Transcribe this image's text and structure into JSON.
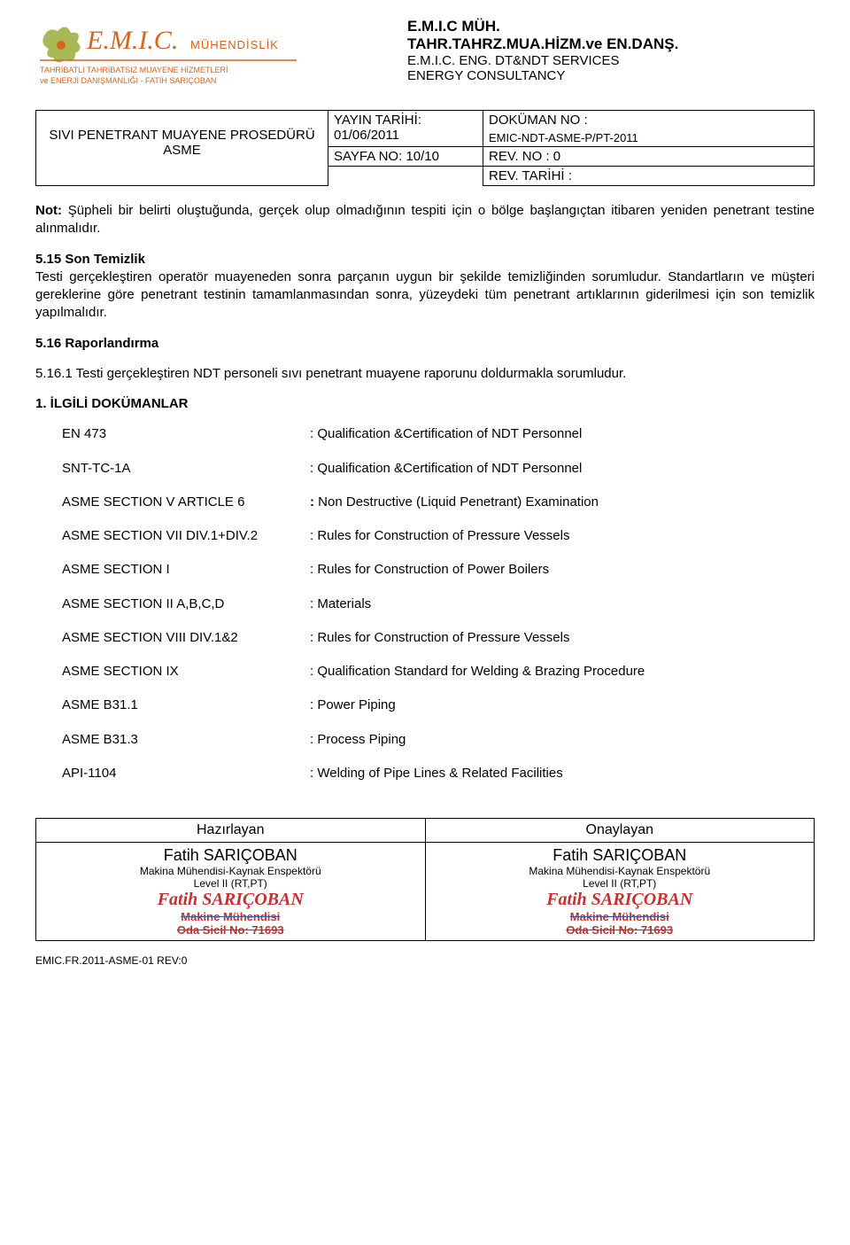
{
  "company": {
    "title1": "E.M.I.C MÜH.",
    "title2": "TAHR.TAHRZ.MUA.HİZM.ve EN.DANŞ.",
    "sub1": "E.M.I.C. ENG. DT&NDT SERVICES",
    "sub2": "ENERGY CONSULTANCY"
  },
  "logo": {
    "brand_main": "E.M.I.C.",
    "brand_sub": "MÜHENDİSLİK",
    "tag1": "TAHRİBATLI TAHRİBATSIZ MUAYENE HİZMETLERİ",
    "tag2": "ve ENERJİ DANIŞMANLIĞI - FATİH SARIÇOBAN",
    "primary_color": "#d8651c",
    "accent_color": "#9aad3a"
  },
  "info": {
    "proc_title": "SIVI PENETRANT MUAYENE PROSEDÜRÜ",
    "proc_sub": "ASME",
    "yayin_label": "YAYIN TARİHİ:",
    "yayin_val": "01/06/2011",
    "sayfa": "SAYFA NO: 10/10",
    "dokuman_label": "DOKÜMAN NO :",
    "dokuman_val": "EMIC-NDT-ASME-P/PT-2011",
    "rev_no": "REV. NO       : 0",
    "rev_tarih": "REV. TARİHİ  :"
  },
  "body": {
    "note_bold": "Not:",
    "note_text": " Şüpheli bir belirti oluştuğunda, gerçek olup olmadığının tespiti için o bölge başlangıçtan itibaren yeniden penetrant testine alınmalıdır.",
    "h515": "5.15 Son Temizlik",
    "p515": "Testi gerçekleştiren operatör muayeneden sonra parçanın uygun bir şekilde temizliğinden sorumludur. Standartların ve müşteri gereklerine göre penetrant testinin tamamlanmasından sonra, yüzeydeki tüm penetrant artıklarının giderilmesi için son temizlik yapılmalıdır.",
    "h516": "5.16 Raporlandırma",
    "p5161": "5.16.1 Testi gerçekleştiren NDT personeli sıvı penetrant muayene raporunu doldurmakla sorumludur.",
    "h1": "1.  İLGİLİ DOKÜMANLAR"
  },
  "docs": [
    {
      "code": "EN 473",
      "desc": ":  Qualification &Certification of NDT Personnel"
    },
    {
      "code": "SNT-TC-1A",
      "desc": ":  Qualification &Certification of NDT Personnel"
    },
    {
      "code": "ASME SECTION V ARTICLE 6",
      "desc": ":  Non Destructive (Liquid Penetrant) Examination",
      "bold": true
    },
    {
      "code": "ASME SECTION VII DIV.1+DIV.2",
      "desc": ":  Rules for Construction of Pressure Vessels"
    },
    {
      "code": "ASME SECTION I",
      "desc": ":  Rules for Construction of Power Boilers"
    },
    {
      "code": "ASME SECTION II  A,B,C,D",
      "desc": ":  Materials"
    },
    {
      "code": "ASME SECTION VIII DIV.1&2",
      "desc": ":  Rules for Construction of Pressure Vessels"
    },
    {
      "code": "ASME SECTION IX",
      "desc": ": Qualification Standard for Welding & Brazing Procedure"
    },
    {
      "code": "ASME B31.1",
      "desc": ":  Power Piping"
    },
    {
      "code": "ASME B31.3",
      "desc": ":  Process Piping"
    },
    {
      "code": "API-1104",
      "desc": ":  Welding of Pipe Lines & Related Facilities"
    }
  ],
  "sig": {
    "left_header": "Hazırlayan",
    "right_header": "Onaylayan",
    "name": "Fatih SARIÇOBAN",
    "role1": "Makina Mühendisi-Kaynak Enspektörü",
    "role2": "Level II (RT,PT)",
    "stamp_name": "Fatih SARIÇOBAN",
    "stamp_l1": "Makine Mühendisi",
    "stamp_l2": "Oda Sicil No: 71693"
  },
  "footer": "EMIC.FR.2011-ASME-01   REV:0"
}
